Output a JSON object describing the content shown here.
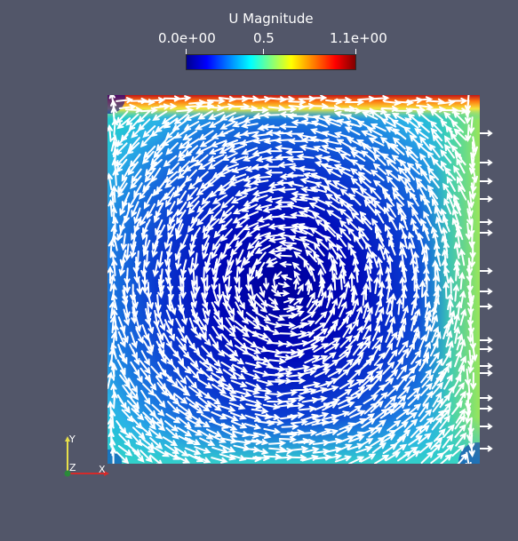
{
  "legend": {
    "title": "U Magnitude",
    "min_label": "0.0e+00",
    "mid_label": "0.5",
    "max_label": "1.1e+00",
    "colormap": "jet",
    "range": [
      0.0,
      1.1
    ]
  },
  "scene": {
    "background_color": "#525669",
    "description_type": "lid-driven cavity velocity glyph plot",
    "axes_labels": {
      "x": "X",
      "y": "Y",
      "z": "Z"
    },
    "colors": {
      "glyph": "#ffffff",
      "x_axis": "#d42a2a",
      "y_axis": "#e8e04a",
      "z_axis": "#2a8a3a"
    }
  }
}
